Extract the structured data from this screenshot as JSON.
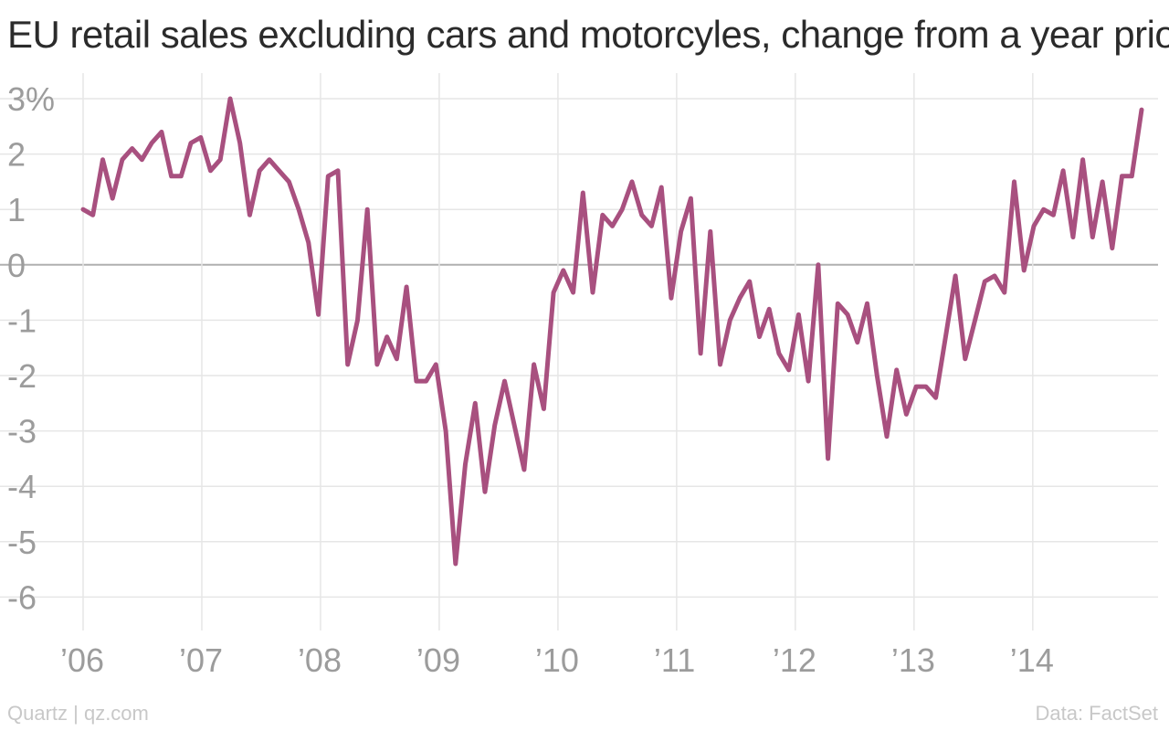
{
  "title": "EU retail sales excluding cars and motorcyles, change from a year prior",
  "credit": "Quartz | qz.com",
  "source": "Data: FactSet",
  "colors": {
    "line": "#a8507f",
    "grid": "#e6e6e6",
    "zero": "#b0b0b0",
    "label": "#9c9c9c"
  },
  "chart_data": {
    "type": "line",
    "title": "EU retail sales excluding cars and motorcyles, change from a year prior",
    "xlabel": "",
    "ylabel": "",
    "ylim": [
      -6.5,
      3.2
    ],
    "xlim": [
      2006.0,
      2014.917
    ],
    "y_ticks": [
      3,
      2,
      1,
      0,
      -1,
      -2,
      -3,
      -4,
      -5,
      -6
    ],
    "y_tick_labels": [
      "3%",
      "2",
      "1",
      "0",
      "-1",
      "-2",
      "-3",
      "-4",
      "-5",
      "-6"
    ],
    "x_ticks": [
      2006,
      2007,
      2008,
      2009,
      2010,
      2011,
      2012,
      2013,
      2014
    ],
    "x_tick_labels": [
      "’06",
      "’07",
      "’08",
      "’09",
      "’10",
      "’11",
      "’12",
      "’13",
      "’14"
    ],
    "grid": true,
    "zero_line": true,
    "x_start": "2006-01",
    "x_step": "monthly",
    "series": [
      {
        "values": [
          1.0,
          0.9,
          1.9,
          1.2,
          1.9,
          2.1,
          1.9,
          2.2,
          2.4,
          1.6,
          1.6,
          2.2,
          2.3,
          1.7,
          1.9,
          3.0,
          2.2,
          0.9,
          1.7,
          1.9,
          1.7,
          1.5,
          1.0,
          0.4,
          -0.9,
          1.6,
          1.7,
          -1.8,
          -1.0,
          1.0,
          -1.8,
          -1.3,
          -1.7,
          -0.4,
          -2.1,
          -2.1,
          -1.8,
          -3.0,
          -5.4,
          -3.6,
          -2.5,
          -4.1,
          -2.9,
          -2.1,
          -2.9,
          -3.7,
          -1.8,
          -2.6,
          -0.5,
          -0.1,
          -0.5,
          1.3,
          -0.5,
          0.9,
          0.7,
          1.0,
          1.5,
          0.9,
          0.7,
          1.4,
          -0.6,
          0.6,
          1.2,
          -1.6,
          0.6,
          -1.8,
          -1.0,
          -0.6,
          -0.3,
          -1.3,
          -0.8,
          -1.6,
          -1.9,
          -0.9,
          -2.1,
          0.0,
          -3.5,
          -0.7,
          -0.9,
          -1.4,
          -0.7,
          -2.0,
          -3.1,
          -1.9,
          -2.7,
          -2.2,
          -2.2,
          -2.4,
          -1.3,
          -0.2,
          -1.7,
          -1.0,
          -0.3,
          -0.2,
          -0.5,
          1.5,
          -0.1,
          0.7,
          1.0,
          0.9,
          1.7,
          0.5,
          1.9,
          0.5,
          1.5,
          0.3,
          1.6,
          1.6,
          2.8
        ]
      }
    ]
  }
}
